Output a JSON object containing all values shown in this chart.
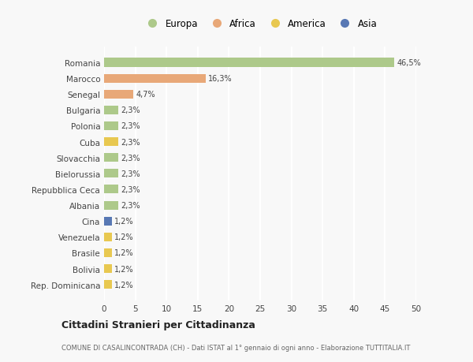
{
  "countries": [
    "Romania",
    "Marocco",
    "Senegal",
    "Bulgaria",
    "Polonia",
    "Cuba",
    "Slovacchia",
    "Bielorussia",
    "Repubblica Ceca",
    "Albania",
    "Cina",
    "Venezuela",
    "Brasile",
    "Bolivia",
    "Rep. Dominicana"
  ],
  "values": [
    46.5,
    16.3,
    4.7,
    2.3,
    2.3,
    2.3,
    2.3,
    2.3,
    2.3,
    2.3,
    1.2,
    1.2,
    1.2,
    1.2,
    1.2
  ],
  "labels": [
    "46,5%",
    "16,3%",
    "4,7%",
    "2,3%",
    "2,3%",
    "2,3%",
    "2,3%",
    "2,3%",
    "2,3%",
    "2,3%",
    "1,2%",
    "1,2%",
    "1,2%",
    "1,2%",
    "1,2%"
  ],
  "continents": [
    "Europa",
    "Africa",
    "Africa",
    "Europa",
    "Europa",
    "America",
    "Europa",
    "Europa",
    "Europa",
    "Europa",
    "Asia",
    "America",
    "America",
    "America",
    "America"
  ],
  "colors": {
    "Europa": "#adc98a",
    "Africa": "#e8a878",
    "America": "#e8c850",
    "Asia": "#5878b4"
  },
  "title": "Cittadini Stranieri per Cittadinanza",
  "subtitle": "COMUNE DI CASALINCONTRADA (CH) - Dati ISTAT al 1° gennaio di ogni anno - Elaborazione TUTTITALIA.IT",
  "xlim": [
    0,
    50
  ],
  "xticks": [
    0,
    5,
    10,
    15,
    20,
    25,
    30,
    35,
    40,
    45,
    50
  ],
  "background_color": "#f8f8f8",
  "grid_color": "#ffffff",
  "bar_height": 0.55
}
